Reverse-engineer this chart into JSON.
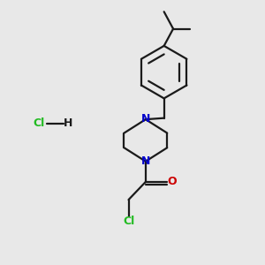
{
  "background_color": "#e8e8e8",
  "bond_color": "#1a1a1a",
  "nitrogen_color": "#0000cc",
  "oxygen_color": "#cc0000",
  "chlorine_color": "#22bb22",
  "line_width": 1.6,
  "fig_width": 3.0,
  "fig_height": 3.0,
  "dpi": 100,
  "xlim": [
    0,
    10
  ],
  "ylim": [
    0,
    10
  ]
}
